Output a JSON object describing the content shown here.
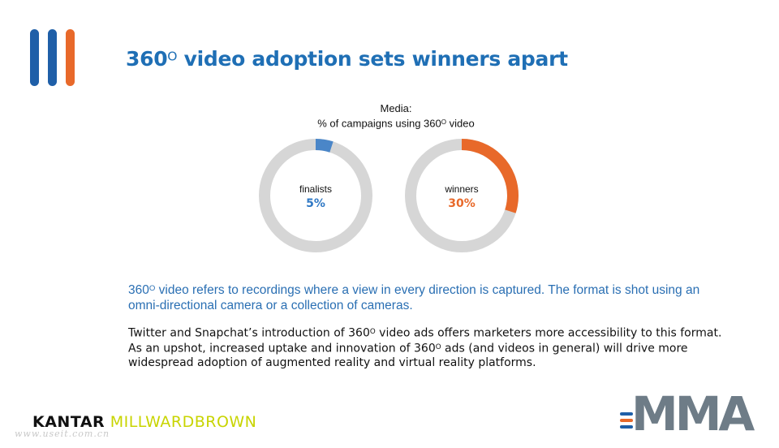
{
  "slide": {
    "title_prefix": "360",
    "title_degree": "O",
    "title_suffix": " video adoption sets winners apart"
  },
  "colors": {
    "title_blue": "#1f6fb5",
    "finalists_blue": "#4a86c8",
    "winners_orange": "#e8692a",
    "ring_gray": "#d6d6d6",
    "bar_blue": "#1f5fa8",
    "bar_orange": "#e8692a"
  },
  "chart_data": {
    "type": "pie",
    "variant": "donut",
    "title_line1": "Media:",
    "title_line2_prefix": "%  of campaigns using 360",
    "title_line2_degree": "O",
    "title_line2_suffix": " video",
    "series": [
      {
        "name": "finalists",
        "value": 5,
        "display": "5%",
        "color": "#4a86c8"
      },
      {
        "name": "winners",
        "value": 30,
        "display": "30%",
        "color": "#e8692a"
      }
    ]
  },
  "text": {
    "para1_a": "360",
    "para1_deg": "O",
    "para1_b": " video refers to recordings where a view in every direction is captured. The format is shot using an omni-directional camera or a collection of cameras.",
    "para2_a": "Twitter and Snapchat’s introduction of 360",
    "para2_deg1": "O",
    "para2_b": " video ads offers marketers more accessibility to this format. As an upshot, increased uptake and innovation of 360",
    "para2_deg2": "O",
    "para2_c": " ads (and videos in general) will drive more widespread adoption of augmented reality and virtual reality platforms."
  },
  "footer": {
    "kantar_part1": "KANTAR",
    "kantar_part2": "MILLWARDBROWN",
    "watermark": "www.useit.com.cn",
    "mma_logo": "MMA"
  }
}
